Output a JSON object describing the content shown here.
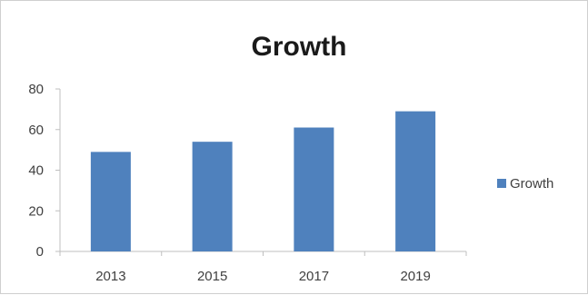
{
  "chart_data": {
    "type": "bar",
    "title": "Growth",
    "categories": [
      "2013",
      "2015",
      "2017",
      "2019"
    ],
    "series": [
      {
        "name": "Growth",
        "values": [
          49,
          54,
          61,
          69
        ],
        "color": "#4f81bd"
      }
    ],
    "ylim": [
      0,
      80
    ],
    "yticks": [
      0,
      20,
      40,
      60,
      80
    ],
    "xlabel": "",
    "ylabel": "",
    "grid": false,
    "legend": "right"
  }
}
